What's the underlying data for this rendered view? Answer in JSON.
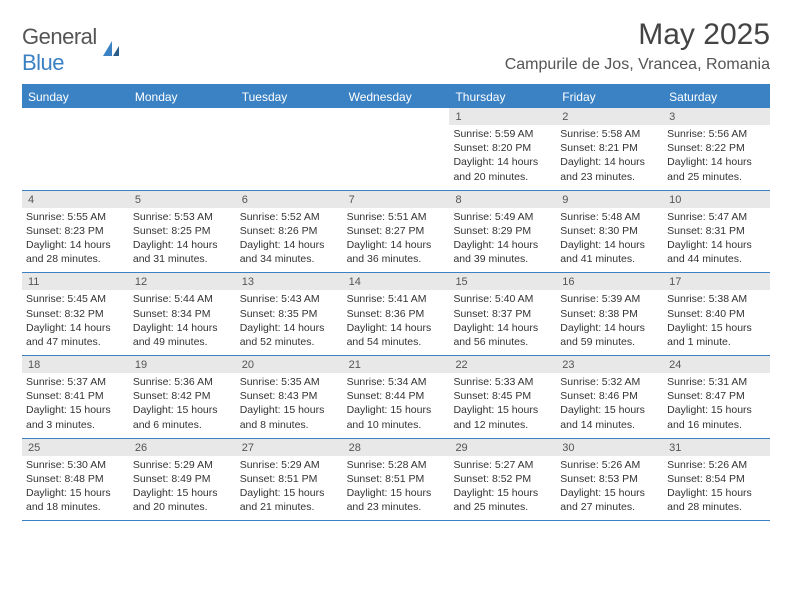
{
  "logo": {
    "text1": "General",
    "text2": "Blue"
  },
  "title": "May 2025",
  "location": "Campurile de Jos, Vrancea, Romania",
  "colors": {
    "accent": "#3b82c4",
    "dayNumBg": "#e8e8e8",
    "text": "#333333",
    "headerText": "#555555",
    "bg": "#ffffff"
  },
  "dow": [
    "Sunday",
    "Monday",
    "Tuesday",
    "Wednesday",
    "Thursday",
    "Friday",
    "Saturday"
  ],
  "weeks": [
    [
      {
        "n": "",
        "sr": "",
        "ss": "",
        "dl": ""
      },
      {
        "n": "",
        "sr": "",
        "ss": "",
        "dl": ""
      },
      {
        "n": "",
        "sr": "",
        "ss": "",
        "dl": ""
      },
      {
        "n": "",
        "sr": "",
        "ss": "",
        "dl": ""
      },
      {
        "n": "1",
        "sr": "Sunrise: 5:59 AM",
        "ss": "Sunset: 8:20 PM",
        "dl": "Daylight: 14 hours and 20 minutes."
      },
      {
        "n": "2",
        "sr": "Sunrise: 5:58 AM",
        "ss": "Sunset: 8:21 PM",
        "dl": "Daylight: 14 hours and 23 minutes."
      },
      {
        "n": "3",
        "sr": "Sunrise: 5:56 AM",
        "ss": "Sunset: 8:22 PM",
        "dl": "Daylight: 14 hours and 25 minutes."
      }
    ],
    [
      {
        "n": "4",
        "sr": "Sunrise: 5:55 AM",
        "ss": "Sunset: 8:23 PM",
        "dl": "Daylight: 14 hours and 28 minutes."
      },
      {
        "n": "5",
        "sr": "Sunrise: 5:53 AM",
        "ss": "Sunset: 8:25 PM",
        "dl": "Daylight: 14 hours and 31 minutes."
      },
      {
        "n": "6",
        "sr": "Sunrise: 5:52 AM",
        "ss": "Sunset: 8:26 PM",
        "dl": "Daylight: 14 hours and 34 minutes."
      },
      {
        "n": "7",
        "sr": "Sunrise: 5:51 AM",
        "ss": "Sunset: 8:27 PM",
        "dl": "Daylight: 14 hours and 36 minutes."
      },
      {
        "n": "8",
        "sr": "Sunrise: 5:49 AM",
        "ss": "Sunset: 8:29 PM",
        "dl": "Daylight: 14 hours and 39 minutes."
      },
      {
        "n": "9",
        "sr": "Sunrise: 5:48 AM",
        "ss": "Sunset: 8:30 PM",
        "dl": "Daylight: 14 hours and 41 minutes."
      },
      {
        "n": "10",
        "sr": "Sunrise: 5:47 AM",
        "ss": "Sunset: 8:31 PM",
        "dl": "Daylight: 14 hours and 44 minutes."
      }
    ],
    [
      {
        "n": "11",
        "sr": "Sunrise: 5:45 AM",
        "ss": "Sunset: 8:32 PM",
        "dl": "Daylight: 14 hours and 47 minutes."
      },
      {
        "n": "12",
        "sr": "Sunrise: 5:44 AM",
        "ss": "Sunset: 8:34 PM",
        "dl": "Daylight: 14 hours and 49 minutes."
      },
      {
        "n": "13",
        "sr": "Sunrise: 5:43 AM",
        "ss": "Sunset: 8:35 PM",
        "dl": "Daylight: 14 hours and 52 minutes."
      },
      {
        "n": "14",
        "sr": "Sunrise: 5:41 AM",
        "ss": "Sunset: 8:36 PM",
        "dl": "Daylight: 14 hours and 54 minutes."
      },
      {
        "n": "15",
        "sr": "Sunrise: 5:40 AM",
        "ss": "Sunset: 8:37 PM",
        "dl": "Daylight: 14 hours and 56 minutes."
      },
      {
        "n": "16",
        "sr": "Sunrise: 5:39 AM",
        "ss": "Sunset: 8:38 PM",
        "dl": "Daylight: 14 hours and 59 minutes."
      },
      {
        "n": "17",
        "sr": "Sunrise: 5:38 AM",
        "ss": "Sunset: 8:40 PM",
        "dl": "Daylight: 15 hours and 1 minute."
      }
    ],
    [
      {
        "n": "18",
        "sr": "Sunrise: 5:37 AM",
        "ss": "Sunset: 8:41 PM",
        "dl": "Daylight: 15 hours and 3 minutes."
      },
      {
        "n": "19",
        "sr": "Sunrise: 5:36 AM",
        "ss": "Sunset: 8:42 PM",
        "dl": "Daylight: 15 hours and 6 minutes."
      },
      {
        "n": "20",
        "sr": "Sunrise: 5:35 AM",
        "ss": "Sunset: 8:43 PM",
        "dl": "Daylight: 15 hours and 8 minutes."
      },
      {
        "n": "21",
        "sr": "Sunrise: 5:34 AM",
        "ss": "Sunset: 8:44 PM",
        "dl": "Daylight: 15 hours and 10 minutes."
      },
      {
        "n": "22",
        "sr": "Sunrise: 5:33 AM",
        "ss": "Sunset: 8:45 PM",
        "dl": "Daylight: 15 hours and 12 minutes."
      },
      {
        "n": "23",
        "sr": "Sunrise: 5:32 AM",
        "ss": "Sunset: 8:46 PM",
        "dl": "Daylight: 15 hours and 14 minutes."
      },
      {
        "n": "24",
        "sr": "Sunrise: 5:31 AM",
        "ss": "Sunset: 8:47 PM",
        "dl": "Daylight: 15 hours and 16 minutes."
      }
    ],
    [
      {
        "n": "25",
        "sr": "Sunrise: 5:30 AM",
        "ss": "Sunset: 8:48 PM",
        "dl": "Daylight: 15 hours and 18 minutes."
      },
      {
        "n": "26",
        "sr": "Sunrise: 5:29 AM",
        "ss": "Sunset: 8:49 PM",
        "dl": "Daylight: 15 hours and 20 minutes."
      },
      {
        "n": "27",
        "sr": "Sunrise: 5:29 AM",
        "ss": "Sunset: 8:51 PM",
        "dl": "Daylight: 15 hours and 21 minutes."
      },
      {
        "n": "28",
        "sr": "Sunrise: 5:28 AM",
        "ss": "Sunset: 8:51 PM",
        "dl": "Daylight: 15 hours and 23 minutes."
      },
      {
        "n": "29",
        "sr": "Sunrise: 5:27 AM",
        "ss": "Sunset: 8:52 PM",
        "dl": "Daylight: 15 hours and 25 minutes."
      },
      {
        "n": "30",
        "sr": "Sunrise: 5:26 AM",
        "ss": "Sunset: 8:53 PM",
        "dl": "Daylight: 15 hours and 27 minutes."
      },
      {
        "n": "31",
        "sr": "Sunrise: 5:26 AM",
        "ss": "Sunset: 8:54 PM",
        "dl": "Daylight: 15 hours and 28 minutes."
      }
    ]
  ]
}
